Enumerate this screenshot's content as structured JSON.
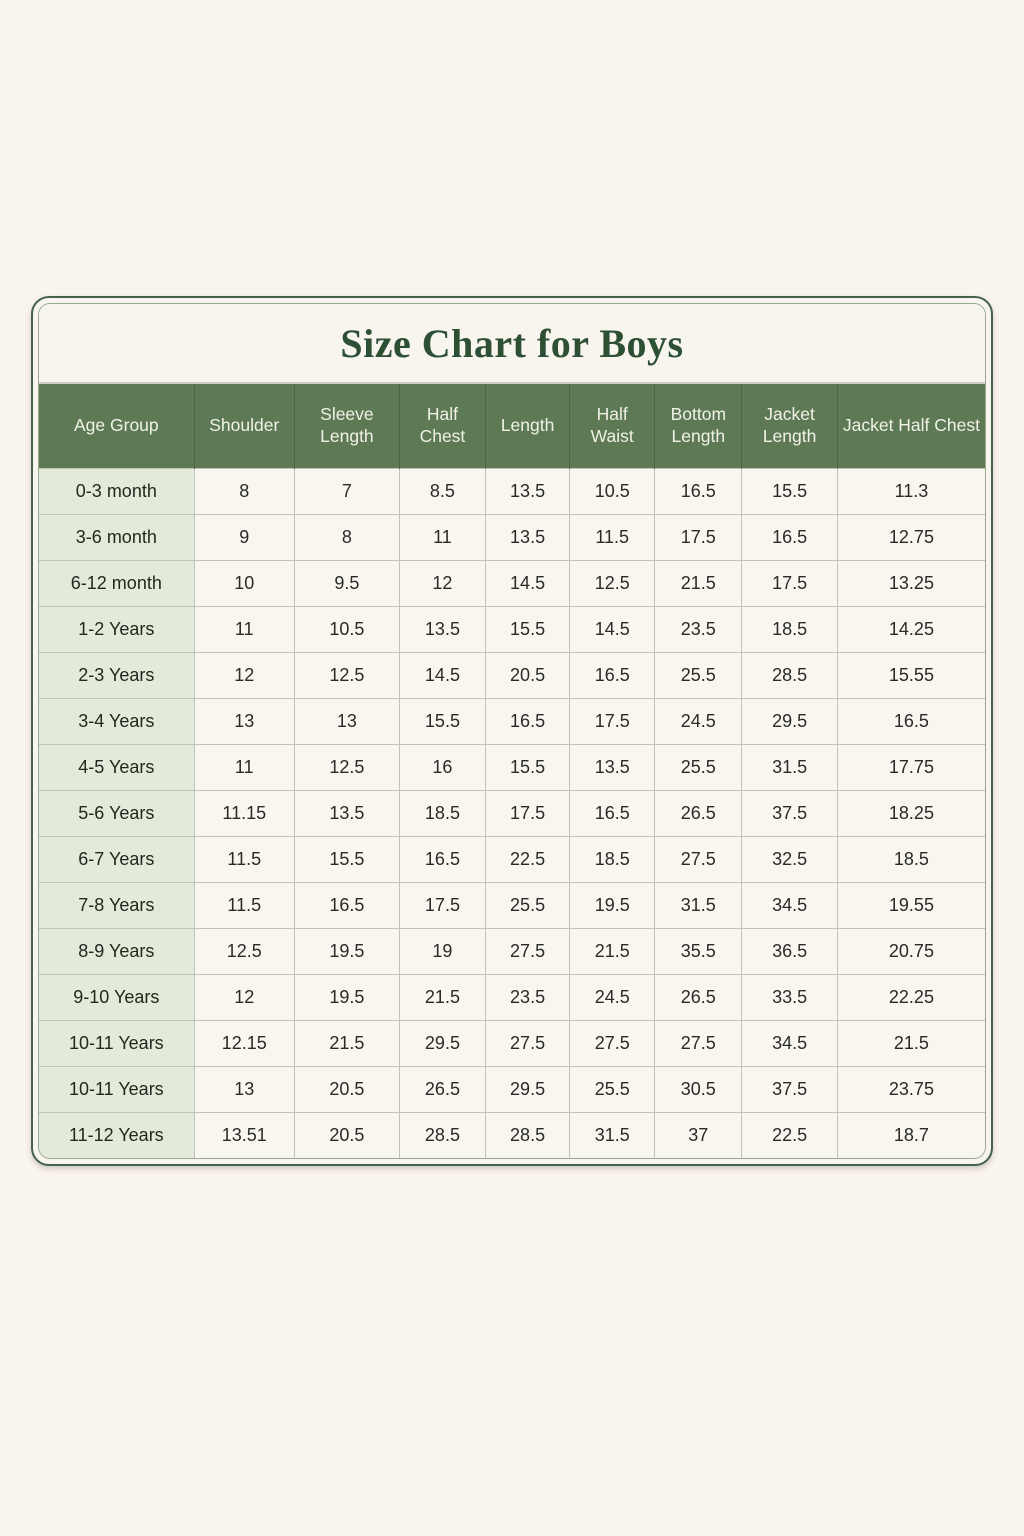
{
  "page": {
    "background": "#faf4ee"
  },
  "card": {
    "title": "Size Chart for Boys",
    "title_color": "#2d4f33",
    "border_color": "#44634a",
    "header_bg": "#5d7a55",
    "header_text_color": "#f2f1e7",
    "age_column_bg": "#e4ead9",
    "cell_bg": "#f8f6ef"
  },
  "chart_data": {
    "type": "table",
    "title": "Size Chart for Boys",
    "columns": [
      "Age Group",
      "Shoulder",
      "Sleeve Length",
      "Half Chest",
      "Length",
      "Half Waist",
      "Bottom Length",
      "Jacket Length",
      "Jacket Half Chest"
    ],
    "rows": [
      [
        "0-3 month",
        "8",
        "7",
        "8.5",
        "13.5",
        "10.5",
        "16.5",
        "15.5",
        "11.3"
      ],
      [
        "3-6 month",
        "9",
        "8",
        "11",
        "13.5",
        "11.5",
        "17.5",
        "16.5",
        "12.75"
      ],
      [
        "6-12 month",
        "10",
        "9.5",
        "12",
        "14.5",
        "12.5",
        "21.5",
        "17.5",
        "13.25"
      ],
      [
        "1-2 Years",
        "11",
        "10.5",
        "13.5",
        "15.5",
        "14.5",
        "23.5",
        "18.5",
        "14.25"
      ],
      [
        "2-3 Years",
        "12",
        "12.5",
        "14.5",
        "20.5",
        "16.5",
        "25.5",
        "28.5",
        "15.55"
      ],
      [
        "3-4 Years",
        "13",
        "13",
        "15.5",
        "16.5",
        "17.5",
        "24.5",
        "29.5",
        "16.5"
      ],
      [
        "4-5 Years",
        "11",
        "12.5",
        "16",
        "15.5",
        "13.5",
        "25.5",
        "31.5",
        "17.75"
      ],
      [
        "5-6 Years",
        "11.15",
        "13.5",
        "18.5",
        "17.5",
        "16.5",
        "26.5",
        "37.5",
        "18.25"
      ],
      [
        "6-7 Years",
        "11.5",
        "15.5",
        "16.5",
        "22.5",
        "18.5",
        "27.5",
        "32.5",
        "18.5"
      ],
      [
        "7-8 Years",
        "11.5",
        "16.5",
        "17.5",
        "25.5",
        "19.5",
        "31.5",
        "34.5",
        "19.55"
      ],
      [
        "8-9 Years",
        "12.5",
        "19.5",
        "19",
        "27.5",
        "21.5",
        "35.5",
        "36.5",
        "20.75"
      ],
      [
        "9-10 Years",
        "12",
        "19.5",
        "21.5",
        "23.5",
        "24.5",
        "26.5",
        "33.5",
        "22.25"
      ],
      [
        "10-11 Years",
        "12.15",
        "21.5",
        "29.5",
        "27.5",
        "27.5",
        "27.5",
        "34.5",
        "21.5"
      ],
      [
        "10-11 Years",
        "13",
        "20.5",
        "26.5",
        "29.5",
        "25.5",
        "30.5",
        "37.5",
        "23.75"
      ],
      [
        "11-12 Years",
        "13.51",
        "20.5",
        "28.5",
        "28.5",
        "31.5",
        "37",
        "22.5",
        "18.7"
      ]
    ]
  }
}
